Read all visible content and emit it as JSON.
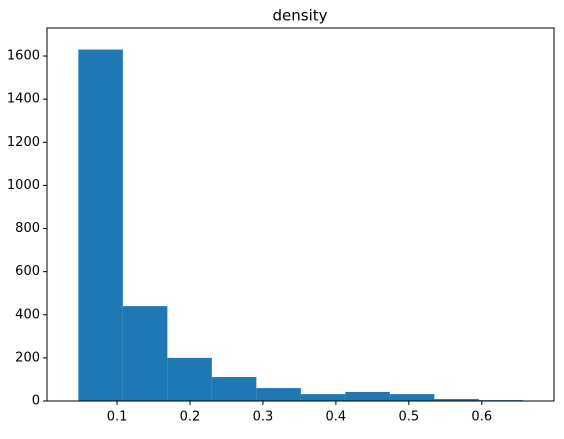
{
  "chart_data": {
    "type": "histogram",
    "title": "density",
    "bins": [
      0.047,
      0.108,
      0.169,
      0.23,
      0.291,
      0.352,
      0.413,
      0.474,
      0.535,
      0.596,
      0.657
    ],
    "values": [
      1630,
      440,
      200,
      111,
      60,
      32,
      42,
      32,
      9,
      4
    ],
    "color": "#1f77b4",
    "xlim": [
      0.004,
      0.699
    ],
    "xticks": [
      0.1,
      0.2,
      0.3,
      0.4,
      0.5,
      0.6
    ],
    "ylim": [
      0,
      1730
    ],
    "yticks": [
      0,
      200,
      400,
      600,
      800,
      1000,
      1200,
      1400,
      1600
    ]
  }
}
